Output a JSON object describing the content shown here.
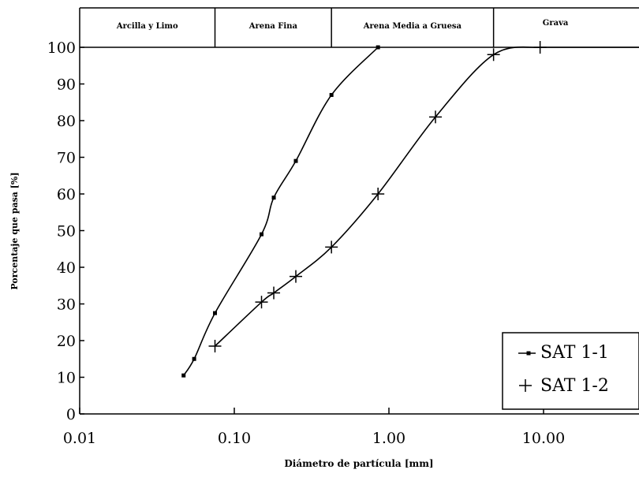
{
  "chart_data": {
    "type": "line",
    "title": "",
    "xlabel": "Diámetro de partícula [mm]",
    "ylabel": "Porcentaje que pasa [%]",
    "xscale": "log",
    "xlim": [
      0.01,
      30
    ],
    "ylim": [
      0,
      100
    ],
    "x_ticks": [
      0.01,
      0.1,
      1,
      10
    ],
    "x_tick_labels": [
      "0.01",
      "0.10",
      "1.00",
      "10.00"
    ],
    "y_ticks": [
      0,
      10,
      20,
      30,
      40,
      50,
      60,
      70,
      80,
      90,
      100
    ],
    "y_tick_labels": [
      "0",
      "10",
      "20",
      "30",
      "40",
      "50",
      "60",
      "70",
      "80",
      "90",
      "100"
    ],
    "grid": false,
    "legend_position": "bottom-right",
    "bands": [
      {
        "label": "Arcilla y Limo",
        "from": 0.01,
        "to": 0.075
      },
      {
        "label": "Arena Fina",
        "from": 0.075,
        "to": 0.425
      },
      {
        "label": "Arena Media a Gruesa",
        "from": 0.425,
        "to": 4.75
      },
      {
        "label": "Grava",
        "from": 4.75,
        "to": 30
      }
    ],
    "series": [
      {
        "name": "SAT 1-1",
        "marker": "square",
        "color": "#000000",
        "x": [
          0.047,
          0.055,
          0.075,
          0.15,
          0.18,
          0.25,
          0.425,
          0.85
        ],
        "y": [
          10.5,
          15,
          27.5,
          49,
          59,
          69,
          87,
          100
        ]
      },
      {
        "name": "SAT 1-2",
        "marker": "plus",
        "color": "#000000",
        "x": [
          0.075,
          0.15,
          0.18,
          0.25,
          0.425,
          0.85,
          2.0,
          4.75,
          9.5
        ],
        "y": [
          18.5,
          30.5,
          33,
          37.5,
          45.5,
          60,
          81,
          98,
          100
        ]
      }
    ]
  }
}
